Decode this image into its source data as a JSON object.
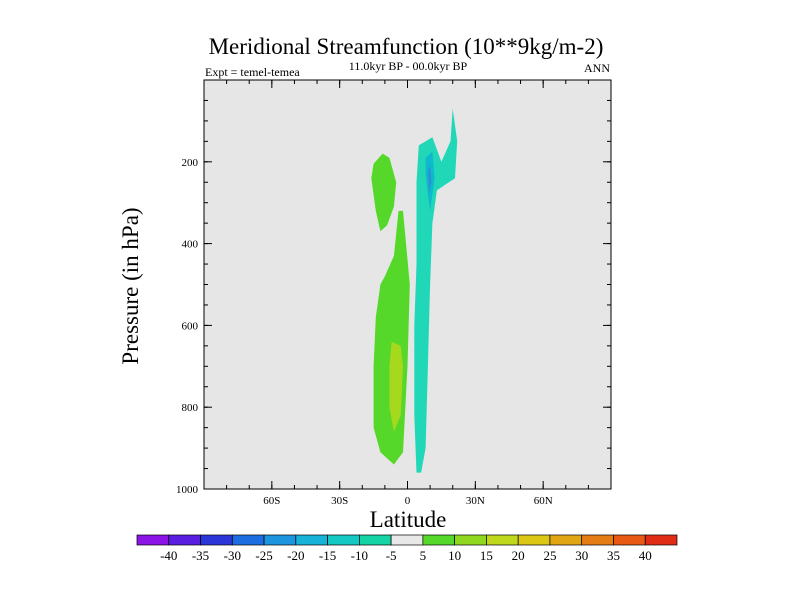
{
  "chart_data": {
    "type": "contour",
    "title": "Meridional Streamfunction (10**9kg/m-2)",
    "subtitle": "11.0kyr BP - 00.0kyr BP",
    "left_label": "Expt = temel-temea",
    "right_label": "ANN",
    "xlabel": "Latitude",
    "ylabel": "Pressure (in hPa)",
    "xlim": [
      -90,
      90
    ],
    "ylim": [
      1000,
      0
    ],
    "x_ticks": [
      {
        "value": -60,
        "label": "60S"
      },
      {
        "value": -30,
        "label": "30S"
      },
      {
        "value": 0,
        "label": "0"
      },
      {
        "value": 30,
        "label": "30N"
      },
      {
        "value": 60,
        "label": "60N"
      }
    ],
    "y_ticks": [
      {
        "value": 200,
        "label": "200"
      },
      {
        "value": 400,
        "label": "400"
      },
      {
        "value": 600,
        "label": "600"
      },
      {
        "value": 800,
        "label": "800"
      },
      {
        "value": 1000,
        "label": "1000"
      }
    ],
    "background_color": "#e6e6e6",
    "regions": [
      {
        "name": "nh-negative-cell",
        "level": "-10 to -5",
        "color": "#20d8b8",
        "points": [
          [
            4,
            960
          ],
          [
            3,
            820
          ],
          [
            3,
            600
          ],
          [
            4,
            450
          ],
          [
            4,
            250
          ],
          [
            5,
            160
          ],
          [
            11,
            140
          ],
          [
            15,
            200
          ],
          [
            19,
            150
          ],
          [
            20,
            70
          ],
          [
            22,
            150
          ],
          [
            21,
            240
          ],
          [
            17,
            255
          ],
          [
            13,
            270
          ],
          [
            11,
            350
          ],
          [
            10,
            500
          ],
          [
            9,
            700
          ],
          [
            8,
            900
          ],
          [
            6,
            960
          ]
        ]
      },
      {
        "name": "nh-negative-core",
        "level": "-15 to -10",
        "color": "#10b8cc",
        "points": [
          [
            8,
            190
          ],
          [
            11,
            175
          ],
          [
            12,
            240
          ],
          [
            10,
            320
          ],
          [
            9,
            280
          ],
          [
            8,
            230
          ]
        ]
      },
      {
        "name": "nh-negative-inner",
        "level": "-20 to -15",
        "color": "#2a90d8",
        "points": [
          [
            9,
            220
          ],
          [
            10,
            210
          ],
          [
            10.6,
            250
          ],
          [
            9.5,
            275
          ]
        ]
      },
      {
        "name": "sh-positive-cell-lower",
        "level": "5 to 10",
        "color": "#55d82a",
        "points": [
          [
            -6,
            940
          ],
          [
            -12,
            910
          ],
          [
            -15,
            850
          ],
          [
            -15,
            700
          ],
          [
            -14,
            580
          ],
          [
            -12,
            500
          ],
          [
            -10,
            480
          ],
          [
            -6,
            430
          ],
          [
            -4,
            320
          ],
          [
            -2,
            320
          ],
          [
            1,
            500
          ],
          [
            0,
            700
          ],
          [
            -2,
            910
          ]
        ]
      },
      {
        "name": "sh-positive-cell-upper",
        "level": "5 to 10",
        "color": "#55d82a",
        "points": [
          [
            -11,
            180
          ],
          [
            -15,
            205
          ],
          [
            -16,
            240
          ],
          [
            -14,
            320
          ],
          [
            -12,
            370
          ],
          [
            -9,
            355
          ],
          [
            -6,
            310
          ],
          [
            -5,
            250
          ],
          [
            -8,
            190
          ]
        ]
      },
      {
        "name": "sh-positive-core",
        "level": "10 to 15",
        "color": "#a6d81e",
        "points": [
          [
            -6,
            860
          ],
          [
            -8,
            800
          ],
          [
            -8,
            700
          ],
          [
            -7,
            640
          ],
          [
            -3,
            650
          ],
          [
            -2,
            700
          ],
          [
            -3,
            820
          ]
        ]
      }
    ],
    "colorbar": {
      "labels": [
        "-40",
        "-35",
        "-30",
        "-25",
        "-20",
        "-15",
        "-10",
        "-5",
        "5",
        "10",
        "15",
        "20",
        "25",
        "30",
        "35",
        "40"
      ],
      "colors": [
        "#8d14e6",
        "#5a1ee0",
        "#2b36d8",
        "#1c6ee0",
        "#1c94de",
        "#16b2d8",
        "#14c8c4",
        "#14d4a6",
        "#e8e8e8",
        "#55d82a",
        "#90d820",
        "#c0d81c",
        "#dcc814",
        "#e0a614",
        "#e47e14",
        "#e85a14",
        "#e02c14"
      ]
    }
  }
}
